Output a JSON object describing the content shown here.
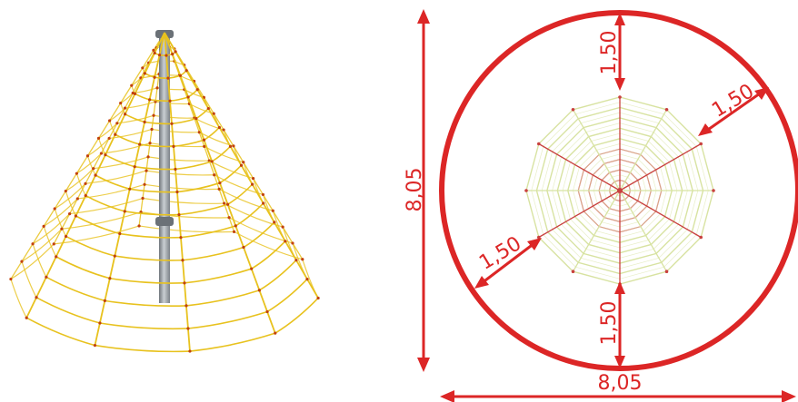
{
  "colors": {
    "dimension": "#dc2626",
    "rope": "#e8c21e",
    "rope_node": "#c2410c",
    "pole": "#9aa0a6",
    "plan_rope_outer": "#d8e3a2",
    "plan_rope_inner": "#c9413f"
  },
  "dimensions": {
    "overall_width": "8,05",
    "overall_height": "8,05",
    "clearance_top": "1,50",
    "clearance_right": "1,50",
    "clearance_left": "1,50",
    "clearance_bottom": "1,50"
  }
}
